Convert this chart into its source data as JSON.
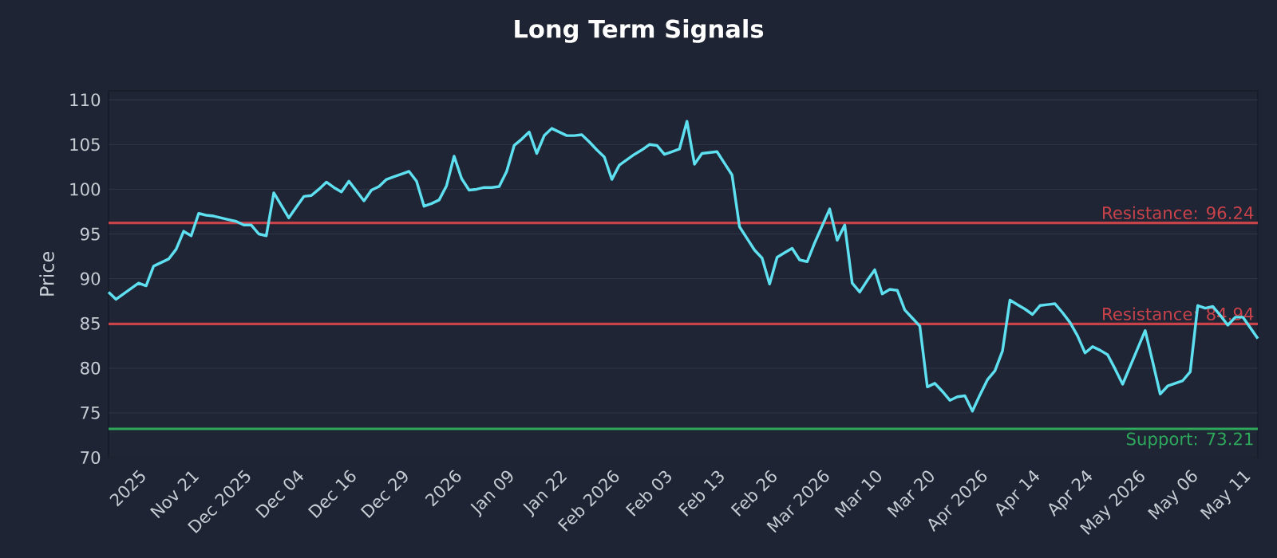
{
  "chart_data": {
    "type": "line",
    "title": "Long Term Signals",
    "ylabel": "Price",
    "categories": [
      null,
      null,
      null,
      null,
      "2025",
      null,
      null,
      null,
      null,
      null,
      null,
      "Nov 21",
      null,
      null,
      null,
      null,
      null,
      null,
      "Dec 2025",
      null,
      null,
      null,
      null,
      null,
      null,
      "Dec 04",
      null,
      null,
      null,
      null,
      null,
      null,
      "Dec 16",
      null,
      null,
      null,
      null,
      null,
      null,
      "Dec 29",
      null,
      null,
      null,
      null,
      null,
      null,
      "2026",
      null,
      null,
      null,
      null,
      null,
      null,
      "Jan 09",
      null,
      null,
      null,
      null,
      null,
      null,
      "Jan 22",
      null,
      null,
      null,
      null,
      null,
      null,
      "Feb 2026",
      null,
      null,
      null,
      null,
      null,
      null,
      "Feb 03",
      null,
      null,
      null,
      null,
      null,
      null,
      "Feb 13",
      null,
      null,
      null,
      null,
      null,
      null,
      "Feb 26",
      null,
      null,
      null,
      null,
      null,
      null,
      "Mar 2026",
      null,
      null,
      null,
      null,
      null,
      null,
      "Mar 10",
      null,
      null,
      null,
      null,
      null,
      null,
      "Mar 20",
      null,
      null,
      null,
      null,
      null,
      null,
      "Apr 2026",
      null,
      null,
      null,
      null,
      null,
      null,
      "Apr 14",
      null,
      null,
      null,
      null,
      null,
      null,
      "Apr 24",
      null,
      null,
      null,
      null,
      null,
      null,
      "May 2026",
      null,
      null,
      null,
      null,
      null,
      null,
      "May 06",
      null,
      null,
      null,
      null,
      null,
      null,
      "May 11",
      null,
      null
    ],
    "series": [
      {
        "color": "#5ee0f0",
        "values": [
          88.5,
          87.7,
          88.3,
          88.9,
          89.5,
          89.2,
          91.4,
          91.8,
          92.2,
          93.3,
          95.3,
          94.8,
          97.3,
          97.1,
          97.0,
          96.8,
          96.6,
          96.4,
          96.0,
          96.0,
          95.0,
          94.8,
          99.6,
          98.2,
          96.8,
          98.0,
          99.2,
          99.3,
          100.0,
          100.8,
          100.2,
          99.7,
          100.9,
          99.8,
          98.7,
          99.9,
          100.3,
          101.1,
          101.4,
          101.7,
          102.0,
          100.9,
          98.1,
          98.4,
          98.8,
          100.4,
          103.7,
          101.2,
          99.9,
          100.0,
          100.2,
          100.2,
          100.3,
          102.0,
          104.9,
          105.6,
          106.4,
          104.0,
          106.0,
          106.8,
          106.4,
          106.0,
          106.0,
          106.1,
          105.3,
          104.4,
          103.6,
          101.1,
          102.7,
          103.3,
          103.9,
          104.4,
          105.0,
          104.9,
          103.9,
          104.2,
          104.5,
          107.6,
          102.8,
          104.0,
          104.1,
          104.2,
          102.9,
          101.6,
          95.8,
          94.5,
          93.2,
          92.3,
          89.4,
          92.4,
          92.9,
          93.4,
          92.1,
          91.9,
          94.0,
          95.9,
          97.8,
          94.3,
          96.0,
          89.5,
          88.5,
          89.8,
          91.0,
          88.3,
          88.8,
          88.7,
          86.5,
          85.6,
          84.7,
          77.9,
          78.3,
          77.4,
          76.4,
          76.8,
          76.9,
          75.2,
          77.0,
          78.7,
          79.7,
          81.9,
          87.6,
          87.1,
          86.6,
          86.0,
          87.0,
          87.1,
          87.2,
          86.2,
          85.1,
          83.6,
          81.7,
          82.4,
          82.0,
          81.5,
          79.9,
          78.2,
          80.2,
          82.2,
          84.2,
          80.7,
          77.1,
          78.0,
          78.3,
          78.6,
          79.6,
          87.0,
          86.7,
          86.9,
          85.9,
          84.8,
          85.7,
          85.7,
          84.5,
          83.3
        ]
      }
    ],
    "ylim": [
      70,
      111
    ],
    "yticks": [
      70,
      75,
      80,
      85,
      90,
      95,
      100,
      105,
      110
    ],
    "grid": "y",
    "marker": "none",
    "line_style": "solid",
    "ref_lines": [
      {
        "axis": "y",
        "value": 96.24,
        "label": "Resistance: 96.24",
        "color": "#c8424a"
      },
      {
        "axis": "y",
        "value": 84.94,
        "label": "Resistance: 84.94",
        "color": "#c8424a"
      },
      {
        "axis": "y",
        "value": 73.21,
        "label": "Support: 73.21",
        "color": "#2ea85a"
      }
    ]
  }
}
